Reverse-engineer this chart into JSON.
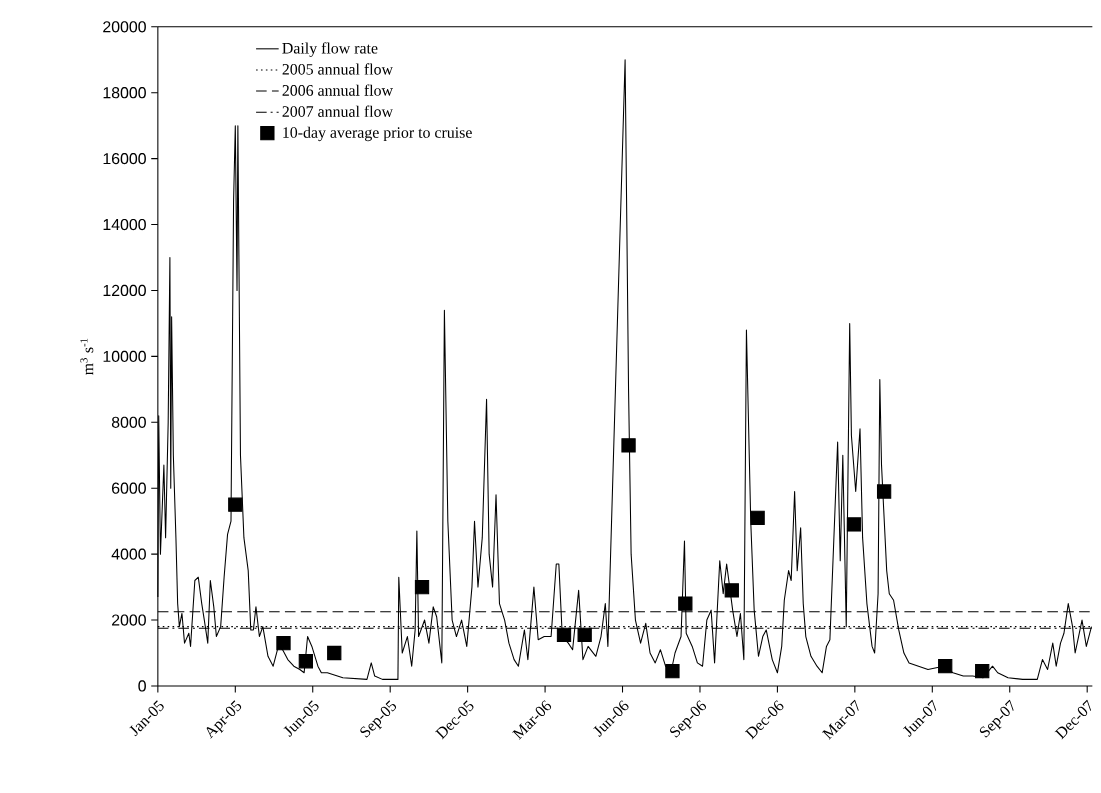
{
  "chart_data": {
    "type": "line",
    "ylabel": "m$^{3}$ s$^{-1}$",
    "xlim": [
      "2005-01-01",
      "2007-12-23"
    ],
    "xticks": [
      {
        "value": "2005-01-01",
        "label": "Jan-05"
      },
      {
        "value": "2005-04-01",
        "label": "Apr-05"
      },
      {
        "value": "2005-06-30",
        "label": "Jun-05"
      },
      {
        "value": "2005-09-28",
        "label": "Sep-05"
      },
      {
        "value": "2005-12-27",
        "label": "Dec-05"
      },
      {
        "value": "2006-03-27",
        "label": "Mar-06"
      },
      {
        "value": "2006-06-25",
        "label": "Jun-06"
      },
      {
        "value": "2006-09-23",
        "label": "Sep-06"
      },
      {
        "value": "2006-12-22",
        "label": "Dec-06"
      },
      {
        "value": "2007-03-22",
        "label": "Mar-07"
      },
      {
        "value": "2007-06-20",
        "label": "Jun-07"
      },
      {
        "value": "2007-09-18",
        "label": "Sep-07"
      },
      {
        "value": "2007-12-17",
        "label": "Dec-07"
      }
    ],
    "ylim": [
      0,
      20000
    ],
    "yticks": [
      0,
      2000,
      4000,
      6000,
      8000,
      10000,
      12000,
      14000,
      16000,
      18000,
      20000
    ],
    "legend": "top left",
    "series": [
      {
        "name": "Daily flow rate",
        "color": "#000000",
        "line_style": "solid",
        "marker": "none",
        "x": [
          "2005-01-01",
          "2005-01-02",
          "2005-01-04",
          "2005-01-08",
          "2005-01-10",
          "2005-01-13",
          "2005-01-15",
          "2005-01-16",
          "2005-01-17",
          "2005-01-19",
          "2005-01-22",
          "2005-01-24",
          "2005-01-26",
          "2005-01-29",
          "2005-02-01",
          "2005-02-06",
          "2005-02-08",
          "2005-02-13",
          "2005-02-17",
          "2005-02-21",
          "2005-02-24",
          "2005-02-28",
          "2005-03-03",
          "2005-03-07",
          "2005-03-10",
          "2005-03-15",
          "2005-03-19",
          "2005-03-23",
          "2005-03-27",
          "2005-03-30",
          "2005-04-01",
          "2005-04-03",
          "2005-04-04",
          "2005-04-07",
          "2005-04-11",
          "2005-04-16",
          "2005-04-19",
          "2005-04-22",
          "2005-04-25",
          "2005-04-29",
          "2005-05-03",
          "2005-05-09",
          "2005-05-15",
          "2005-05-21",
          "2005-05-26",
          "2005-06-01",
          "2005-06-08",
          "2005-06-15",
          "2005-06-20",
          "2005-06-24",
          "2005-06-29",
          "2005-07-06",
          "2005-07-10",
          "2005-07-17",
          "2005-08-04",
          "2005-09-01",
          "2005-09-06",
          "2005-09-10",
          "2005-09-19",
          "2005-10-07",
          "2005-10-08",
          "2005-10-12",
          "2005-10-18",
          "2005-10-23",
          "2005-10-27",
          "2005-10-29",
          "2005-10-31",
          "2005-11-07",
          "2005-11-12",
          "2005-11-17",
          "2005-11-21",
          "2005-11-27",
          "2005-11-30",
          "2005-12-04",
          "2005-12-09",
          "2005-12-14",
          "2005-12-20",
          "2005-12-26",
          "2006-01-01",
          "2006-01-04",
          "2006-01-08",
          "2006-01-13",
          "2006-01-18",
          "2006-01-21",
          "2006-01-25",
          "2006-01-29",
          "2006-02-02",
          "2006-02-08",
          "2006-02-13",
          "2006-02-19",
          "2006-02-24",
          "2006-03-03",
          "2006-03-07",
          "2006-03-14",
          "2006-03-19",
          "2006-03-26",
          "2006-04-03",
          "2006-04-09",
          "2006-04-12",
          "2006-04-16",
          "2006-04-23",
          "2006-04-28",
          "2006-05-05",
          "2006-05-10",
          "2006-05-16",
          "2006-05-25",
          "2006-05-31",
          "2006-06-05",
          "2006-06-08",
          "2006-06-28",
          "2006-07-02",
          "2006-07-05",
          "2006-07-10",
          "2006-07-16",
          "2006-07-22",
          "2006-07-27",
          "2006-08-02",
          "2006-08-08",
          "2006-08-14",
          "2006-08-21",
          "2006-08-25",
          "2006-09-01",
          "2006-09-05",
          "2006-09-07",
          "2006-09-14",
          "2006-09-20",
          "2006-09-26",
          "2006-10-01",
          "2006-10-06",
          "2006-10-10",
          "2006-10-16",
          "2006-10-20",
          "2006-10-24",
          "2006-10-31",
          "2006-11-05",
          "2006-11-09",
          "2006-11-13",
          "2006-11-16",
          "2006-11-21",
          "2006-11-25",
          "2006-11-30",
          "2006-12-05",
          "2006-12-09",
          "2006-12-16",
          "2006-12-22",
          "2006-12-27",
          "2006-12-30",
          "2007-01-04",
          "2007-01-07",
          "2007-01-11",
          "2007-01-14",
          "2007-01-18",
          "2007-01-21",
          "2007-01-24",
          "2007-01-30",
          "2007-02-06",
          "2007-02-12",
          "2007-02-17",
          "2007-02-21",
          "2007-03-02",
          "2007-03-05",
          "2007-03-08",
          "2007-03-12",
          "2007-03-16",
          "2007-03-18",
          "2007-03-23",
          "2007-03-28",
          "2007-03-31",
          "2007-04-05",
          "2007-04-11",
          "2007-04-14",
          "2007-04-18",
          "2007-04-20",
          "2007-04-22",
          "2007-04-28",
          "2007-05-01",
          "2007-05-06",
          "2007-05-12",
          "2007-05-18",
          "2007-05-24",
          "2007-06-04",
          "2007-06-15",
          "2007-07-03",
          "2007-07-14",
          "2007-07-26",
          "2007-08-06",
          "2007-08-18",
          "2007-08-29",
          "2007-09-04",
          "2007-09-16",
          "2007-10-03",
          "2007-10-20",
          "2007-10-26",
          "2007-11-01",
          "2007-11-07",
          "2007-11-11",
          "2007-11-16",
          "2007-11-20",
          "2007-11-25",
          "2007-11-30",
          "2007-12-03",
          "2007-12-07",
          "2007-12-11",
          "2007-12-16",
          "2007-12-22"
        ],
        "values": [
          2700,
          8200,
          4000,
          6700,
          4500,
          8000,
          13000,
          6000,
          11200,
          7000,
          4500,
          2500,
          1800,
          2200,
          1300,
          1600,
          1200,
          3200,
          3300,
          2500,
          2000,
          1300,
          3200,
          2400,
          1500,
          1800,
          3300,
          4600,
          5000,
          14700,
          17000,
          12000,
          17000,
          7000,
          4500,
          3500,
          1700,
          1700,
          2400,
          1500,
          1800,
          900,
          600,
          1200,
          1100,
          800,
          600,
          500,
          400,
          1500,
          1200,
          600,
          400,
          400,
          250,
          200,
          700,
          300,
          200,
          200,
          3300,
          1000,
          1500,
          600,
          1700,
          4700,
          1500,
          2000,
          1300,
          2400,
          2100,
          700,
          11400,
          5000,
          2000,
          1500,
          2000,
          1200,
          3000,
          5000,
          3000,
          4500,
          8700,
          4000,
          3000,
          5800,
          2500,
          2000,
          1300,
          800,
          600,
          1700,
          800,
          3000,
          1400,
          1500,
          1500,
          3700,
          3700,
          1500,
          1300,
          1100,
          2900,
          800,
          1200,
          900,
          1500,
          2500,
          1200,
          19000,
          9000,
          4000,
          2000,
          1300,
          1900,
          1000,
          700,
          1100,
          600,
          500,
          1000,
          1500,
          4400,
          1600,
          1200,
          700,
          600,
          2000,
          2300,
          700,
          3800,
          2800,
          3700,
          2300,
          1500,
          2200,
          800,
          10800,
          5000,
          2300,
          900,
          1500,
          1700,
          800,
          400,
          1200,
          2600,
          3500,
          3200,
          5900,
          3500,
          4800,
          2500,
          1500,
          900,
          600,
          400,
          1200,
          1400,
          7400,
          3800,
          7000,
          1800,
          11000,
          7600,
          5900,
          7800,
          4500,
          2500,
          1200,
          1000,
          2800,
          9300,
          6700,
          3500,
          2800,
          2600,
          1700,
          1000,
          700,
          600,
          500,
          600,
          400,
          300,
          300,
          250,
          600,
          400,
          250,
          200,
          200,
          800,
          500,
          1300,
          600,
          1300,
          1600,
          2500,
          1800,
          1000,
          1500,
          2000,
          1200,
          1800
        ]
      },
      {
        "name": "10-day average prior to cruise",
        "type": "scatter",
        "color": "#000000",
        "marker": "square",
        "x": [
          "2005-04-01",
          "2005-05-27",
          "2005-06-22",
          "2005-07-25",
          "2005-11-04",
          "2006-04-18",
          "2006-05-12",
          "2006-07-02",
          "2006-08-22",
          "2006-09-06",
          "2006-10-30",
          "2006-11-29",
          "2007-03-21",
          "2007-04-25",
          "2007-07-05",
          "2007-08-17"
        ],
        "values": [
          5500,
          1300,
          750,
          1000,
          3000,
          1550,
          1550,
          7300,
          450,
          2500,
          2900,
          5100,
          4900,
          5900,
          600,
          450
        ]
      }
    ],
    "ref_lines": [
      {
        "axis": "y",
        "value": 1800,
        "label": "2005 annual flow",
        "line_style": "dotted",
        "color": "#000000"
      },
      {
        "axis": "y",
        "value": 2250,
        "label": "2006 annual flow",
        "line_style": "dashed",
        "color": "#000000"
      },
      {
        "axis": "y",
        "value": 1750,
        "label": "2007 annual flow",
        "line_style": "dashdot",
        "color": "#000000"
      }
    ]
  }
}
